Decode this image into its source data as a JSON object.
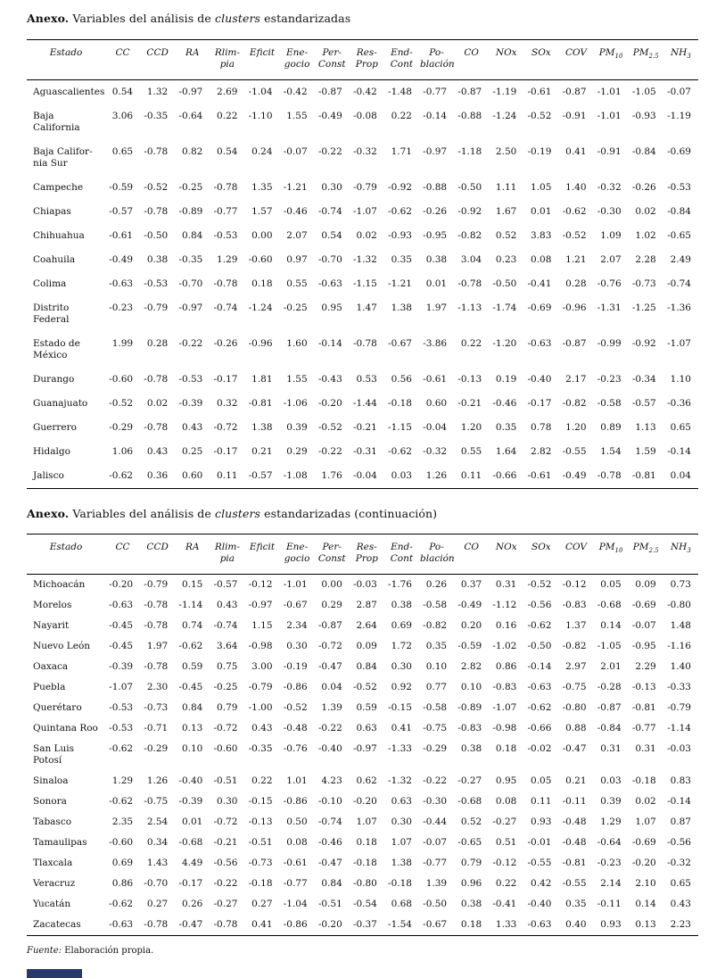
{
  "columns": [
    {
      "label": "Estado"
    },
    {
      "label": "CC"
    },
    {
      "label": "CCD"
    },
    {
      "label": "RA"
    },
    {
      "label": "Rlim-\npia"
    },
    {
      "label": "Eficit"
    },
    {
      "label": "Ene-\ngocio"
    },
    {
      "label": "Per-\nConst"
    },
    {
      "label": "Res-\nProp"
    },
    {
      "label": "End-\nCont"
    },
    {
      "label": "Po-\nblación"
    },
    {
      "label": "CO"
    },
    {
      "label": "NOx"
    },
    {
      "label": "SOx"
    },
    {
      "label": "COV"
    },
    {
      "label": "PM",
      "sub": "10"
    },
    {
      "label": "PM",
      "sub": "2.5"
    },
    {
      "label": "NH",
      "sub": "3"
    }
  ],
  "table1": {
    "title": {
      "prefix": "Anexo.",
      "mid": " Variables del análisis de ",
      "italic": "clusters",
      "suffix": " estandarizadas"
    },
    "rows": [
      {
        "estado": "Aguascalientes",
        "values": [
          "0.54",
          "1.32",
          "-0.97",
          "2.69",
          "-1.04",
          "-0.42",
          "-0.87",
          "-0.42",
          "-1.48",
          "-0.77",
          "-0.87",
          "-1.19",
          "-0.61",
          "-0.87",
          "-1.01",
          "-1.05",
          "-0.07"
        ]
      },
      {
        "estado": "Baja\nCalifornia",
        "values": [
          "3.06",
          "-0.35",
          "-0.64",
          "0.22",
          "-1.10",
          "1.55",
          "-0.49",
          "-0.08",
          "0.22",
          "-0.14",
          "-0.88",
          "-1.24",
          "-0.52",
          "-0.91",
          "-1.01",
          "-0.93",
          "-1.19"
        ]
      },
      {
        "estado": "Baja Califor-\nnia Sur",
        "values": [
          "0.65",
          "-0.78",
          "0.82",
          "0.54",
          "0.24",
          "-0.07",
          "-0.22",
          "-0.32",
          "1.71",
          "-0.97",
          "-1.18",
          "2.50",
          "-0.19",
          "0.41",
          "-0.91",
          "-0.84",
          "-0.69"
        ]
      },
      {
        "estado": "Campeche",
        "values": [
          "-0.59",
          "-0.52",
          "-0.25",
          "-0.78",
          "1.35",
          "-1.21",
          "0.30",
          "-0.79",
          "-0.92",
          "-0.88",
          "-0.50",
          "1.11",
          "1.05",
          "1.40",
          "-0.32",
          "-0.26",
          "-0.53"
        ]
      },
      {
        "estado": "Chiapas",
        "values": [
          "-0.57",
          "-0.78",
          "-0.89",
          "-0.77",
          "1.57",
          "-0.46",
          "-0.74",
          "-1.07",
          "-0.62",
          "-0.26",
          "-0.92",
          "1.67",
          "0.01",
          "-0.62",
          "-0.30",
          "0.02",
          "-0.84"
        ]
      },
      {
        "estado": "Chihuahua",
        "values": [
          "-0.61",
          "-0.50",
          "0.84",
          "-0.53",
          "0.00",
          "2.07",
          "0.54",
          "0.02",
          "-0.93",
          "-0.95",
          "-0.82",
          "0.52",
          "3.83",
          "-0.52",
          "1.09",
          "1.02",
          "-0.65"
        ]
      },
      {
        "estado": "Coahuila",
        "values": [
          "-0.49",
          "0.38",
          "-0.35",
          "1.29",
          "-0.60",
          "0.97",
          "-0.70",
          "-1.32",
          "0.35",
          "0.38",
          "3.04",
          "0.23",
          "0.08",
          "1.21",
          "2.07",
          "2.28",
          "2.49"
        ]
      },
      {
        "estado": "Colima",
        "values": [
          "-0.63",
          "-0.53",
          "-0.70",
          "-0.78",
          "0.18",
          "0.55",
          "-0.63",
          "-1.15",
          "-1.21",
          "0.01",
          "-0.78",
          "-0.50",
          "-0.41",
          "0.28",
          "-0.76",
          "-0.73",
          "-0.74"
        ]
      },
      {
        "estado": "Distrito\nFederal",
        "values": [
          "-0.23",
          "-0.79",
          "-0.97",
          "-0.74",
          "-1.24",
          "-0.25",
          "0.95",
          "1.47",
          "1.38",
          "1.97",
          "-1.13",
          "-1.74",
          "-0.69",
          "-0.96",
          "-1.31",
          "-1.25",
          "-1.36"
        ]
      },
      {
        "estado": "Estado de\nMéxico",
        "values": [
          "1.99",
          "0.28",
          "-0.22",
          "-0.26",
          "-0.96",
          "1.60",
          "-0.14",
          "-0.78",
          "-0.67",
          "-3.86",
          "0.22",
          "-1.20",
          "-0.63",
          "-0.87",
          "-0.99",
          "-0.92",
          "-1.07"
        ]
      },
      {
        "estado": "Durango",
        "values": [
          "-0.60",
          "-0.78",
          "-0.53",
          "-0.17",
          "1.81",
          "1.55",
          "-0.43",
          "0.53",
          "0.56",
          "-0.61",
          "-0.13",
          "0.19",
          "-0.40",
          "2.17",
          "-0.23",
          "-0.34",
          "1.10"
        ]
      },
      {
        "estado": "Guanajuato",
        "values": [
          "-0.52",
          "0.02",
          "-0.39",
          "0.32",
          "-0.81",
          "-1.06",
          "-0.20",
          "-1.44",
          "-0.18",
          "0.60",
          "-0.21",
          "-0.46",
          "-0.17",
          "-0.82",
          "-0.58",
          "-0.57",
          "-0.36"
        ]
      },
      {
        "estado": "Guerrero",
        "values": [
          "-0.29",
          "-0.78",
          "0.43",
          "-0.72",
          "1.38",
          "0.39",
          "-0.52",
          "-0.21",
          "-1.15",
          "-0.04",
          "1.20",
          "0.35",
          "0.78",
          "1.20",
          "0.89",
          "1.13",
          "0.65"
        ]
      },
      {
        "estado": "Hidalgo",
        "values": [
          "1.06",
          "0.43",
          "0.25",
          "-0.17",
          "0.21",
          "0.29",
          "-0.22",
          "-0.31",
          "-0.62",
          "-0.32",
          "0.55",
          "1.64",
          "2.82",
          "-0.55",
          "1.54",
          "1.59",
          "-0.14"
        ]
      },
      {
        "estado": "Jalisco",
        "values": [
          "-0.62",
          "0.36",
          "0.60",
          "0.11",
          "-0.57",
          "-1.08",
          "1.76",
          "-0.04",
          "0.03",
          "1.26",
          "0.11",
          "-0.66",
          "-0.61",
          "-0.49",
          "-0.78",
          "-0.81",
          "0.04"
        ]
      }
    ]
  },
  "table2": {
    "title": {
      "prefix": "Anexo.",
      "mid": " Variables del análisis de ",
      "italic": "clusters",
      "suffix": " estandarizadas (continuación)"
    },
    "rows": [
      {
        "estado": "Michoacán",
        "values": [
          "-0.20",
          "-0.79",
          "0.15",
          "-0.57",
          "-0.12",
          "-1.01",
          "0.00",
          "-0.03",
          "-1.76",
          "0.26",
          "0.37",
          "0.31",
          "-0.52",
          "-0.12",
          "0.05",
          "0.09",
          "0.73"
        ]
      },
      {
        "estado": "Morelos",
        "values": [
          "-0.63",
          "-0.78",
          "-1.14",
          "0.43",
          "-0.97",
          "-0.67",
          "0.29",
          "2.87",
          "0.38",
          "-0.58",
          "-0.49",
          "-1.12",
          "-0.56",
          "-0.83",
          "-0.68",
          "-0.69",
          "-0.80"
        ]
      },
      {
        "estado": "Nayarit",
        "values": [
          "-0.45",
          "-0.78",
          "0.74",
          "-0.74",
          "1.15",
          "2.34",
          "-0.87",
          "2.64",
          "0.69",
          "-0.82",
          "0.20",
          "0.16",
          "-0.62",
          "1.37",
          "0.14",
          "-0.07",
          "1.48"
        ]
      },
      {
        "estado": "Nuevo León",
        "values": [
          "-0.45",
          "1.97",
          "-0.62",
          "3.64",
          "-0.98",
          "0.30",
          "-0.72",
          "0.09",
          "1.72",
          "0.35",
          "-0.59",
          "-1.02",
          "-0.50",
          "-0.82",
          "-1.05",
          "-0.95",
          "-1.16"
        ]
      },
      {
        "estado": "Oaxaca",
        "values": [
          "-0.39",
          "-0.78",
          "0.59",
          "0.75",
          "3.00",
          "-0.19",
          "-0.47",
          "0.84",
          "0.30",
          "0.10",
          "2.82",
          "0.86",
          "-0.14",
          "2.97",
          "2.01",
          "2.29",
          "1.40"
        ]
      },
      {
        "estado": "Puebla",
        "values": [
          "-1.07",
          "2.30",
          "-0.45",
          "-0.25",
          "-0.79",
          "-0.86",
          "0.04",
          "-0.52",
          "0.92",
          "0.77",
          "0.10",
          "-0.83",
          "-0.63",
          "-0.75",
          "-0.28",
          "-0.13",
          "-0.33"
        ]
      },
      {
        "estado": "Querétaro",
        "values": [
          "-0.53",
          "-0.73",
          "0.84",
          "0.79",
          "-1.00",
          "-0.52",
          "1.39",
          "0.59",
          "-0.15",
          "-0.58",
          "-0.89",
          "-1.07",
          "-0.62",
          "-0.80",
          "-0.87",
          "-0.81",
          "-0.79"
        ]
      },
      {
        "estado": "Quintana Roo",
        "values": [
          "-0.53",
          "-0.71",
          "0.13",
          "-0.72",
          "0.43",
          "-0.48",
          "-0.22",
          "0.63",
          "0.41",
          "-0.75",
          "-0.83",
          "-0.98",
          "-0.66",
          "0.88",
          "-0.84",
          "-0.77",
          "-1.14"
        ]
      },
      {
        "estado": "San Luis\nPotosí",
        "values": [
          "-0.62",
          "-0.29",
          "0.10",
          "-0.60",
          "-0.35",
          "-0.76",
          "-0.40",
          "-0.97",
          "-1.33",
          "-0.29",
          "0.38",
          "0.18",
          "-0.02",
          "-0.47",
          "0.31",
          "0.31",
          "-0.03"
        ]
      },
      {
        "estado": "Sinaloa",
        "values": [
          "1.29",
          "1.26",
          "-0.40",
          "-0.51",
          "0.22",
          "1.01",
          "4.23",
          "0.62",
          "-1.32",
          "-0.22",
          "-0.27",
          "0.95",
          "0.05",
          "0.21",
          "0.03",
          "-0.18",
          "0.83"
        ]
      },
      {
        "estado": "Sonora",
        "values": [
          "-0.62",
          "-0.75",
          "-0.39",
          "0.30",
          "-0.15",
          "-0.86",
          "-0.10",
          "-0.20",
          "0.63",
          "-0.30",
          "-0.68",
          "0.08",
          "0.11",
          "-0.11",
          "0.39",
          "0.02",
          "-0.14"
        ]
      },
      {
        "estado": "Tabasco",
        "values": [
          "2.35",
          "2.54",
          "0.01",
          "-0.72",
          "-0.13",
          "0.50",
          "-0.74",
          "1.07",
          "0.30",
          "-0.44",
          "0.52",
          "-0.27",
          "0.93",
          "-0.48",
          "1.29",
          "1.07",
          "0.87"
        ]
      },
      {
        "estado": "Tamaulipas",
        "values": [
          "-0.60",
          "0.34",
          "-0.68",
          "-0.21",
          "-0.51",
          "0.08",
          "-0.46",
          "0.18",
          "1.07",
          "-0.07",
          "-0.65",
          "0.51",
          "-0.01",
          "-0.48",
          "-0.64",
          "-0.69",
          "-0.56"
        ]
      },
      {
        "estado": "Tlaxcala",
        "values": [
          "0.69",
          "1.43",
          "4.49",
          "-0.56",
          "-0.73",
          "-0.61",
          "-0.47",
          "-0.18",
          "1.38",
          "-0.77",
          "0.79",
          "-0.12",
          "-0.55",
          "-0.81",
          "-0.23",
          "-0.20",
          "-0.32"
        ]
      },
      {
        "estado": "Veracruz",
        "values": [
          "0.86",
          "-0.70",
          "-0.17",
          "-0.22",
          "-0.18",
          "-0.77",
          "0.84",
          "-0.80",
          "-0.18",
          "1.39",
          "0.96",
          "0.22",
          "0.42",
          "-0.55",
          "2.14",
          "2.10",
          "0.65"
        ]
      },
      {
        "estado": "Yucatán",
        "values": [
          "-0.62",
          "0.27",
          "0.26",
          "-0.27",
          "0.27",
          "-1.04",
          "-0.51",
          "-0.54",
          "0.68",
          "-0.50",
          "0.38",
          "-0.41",
          "-0.40",
          "0.35",
          "-0.11",
          "0.14",
          "0.43"
        ]
      },
      {
        "estado": "Zacatecas",
        "values": [
          "-0.63",
          "-0.78",
          "-0.47",
          "-0.78",
          "0.41",
          "-0.86",
          "-0.20",
          "-0.37",
          "-1.54",
          "-0.67",
          "0.18",
          "1.33",
          "-0.63",
          "0.40",
          "0.93",
          "0.13",
          "2.23"
        ]
      }
    ]
  },
  "footer": {
    "label": "Fuente:",
    "text": " Elaboración propia."
  },
  "footer_mark_color": "#27396b"
}
